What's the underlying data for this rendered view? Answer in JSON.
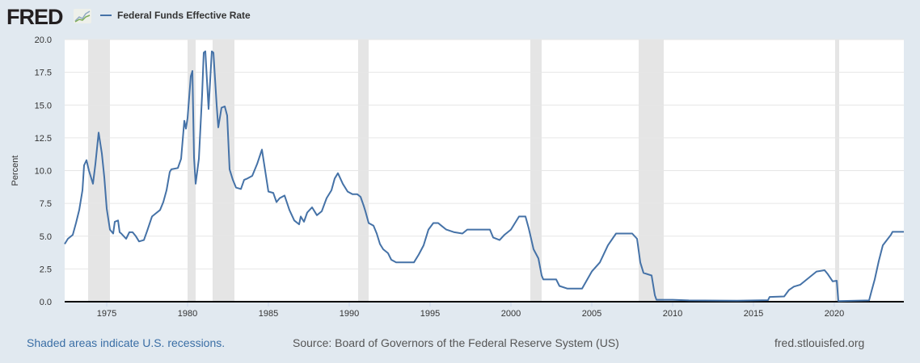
{
  "header": {
    "logo": "FRED",
    "legend_label": "Federal Funds Effective Rate"
  },
  "footer": {
    "recession_note": "Shaded areas indicate U.S. recessions.",
    "source": "Source: Board of Governors of the Federal Reserve System (US)",
    "site": "fred.stlouisfed.org"
  },
  "chart_data": {
    "type": "line",
    "title": "",
    "xlabel": "",
    "ylabel": "Percent",
    "xlim": [
      1972.4,
      2024.3
    ],
    "ylim": [
      0,
      20
    ],
    "grid": true,
    "legend": "top-left",
    "yticks": [
      "0.0",
      "2.5",
      "5.0",
      "7.5",
      "10.0",
      "12.5",
      "15.0",
      "17.5",
      "20.0"
    ],
    "xticks": [
      "1975",
      "1980",
      "1985",
      "1990",
      "1995",
      "2000",
      "2005",
      "2010",
      "2015",
      "2020"
    ],
    "colors": {
      "line": "#4572a7",
      "recession": "#e5e5e5",
      "background": "#e1e9f0"
    },
    "recessions": [
      [
        1973.85,
        1975.2
      ],
      [
        1980.0,
        1980.5
      ],
      [
        1981.55,
        1982.9
      ],
      [
        1990.55,
        1991.2
      ],
      [
        2001.2,
        2001.9
      ],
      [
        2007.9,
        2009.45
      ],
      [
        2020.05,
        2020.3
      ]
    ],
    "series": [
      {
        "name": "Federal Funds Effective Rate",
        "points": [
          [
            1972.4,
            4.4
          ],
          [
            1972.6,
            4.8
          ],
          [
            1972.9,
            5.1
          ],
          [
            1973.1,
            6.0
          ],
          [
            1973.3,
            7.0
          ],
          [
            1973.5,
            8.5
          ],
          [
            1973.6,
            10.4
          ],
          [
            1973.75,
            10.8
          ],
          [
            1973.9,
            10.0
          ],
          [
            1974.0,
            9.6
          ],
          [
            1974.15,
            9.0
          ],
          [
            1974.3,
            10.5
          ],
          [
            1974.5,
            12.9
          ],
          [
            1974.7,
            11.3
          ],
          [
            1974.85,
            9.5
          ],
          [
            1975.0,
            7.1
          ],
          [
            1975.2,
            5.5
          ],
          [
            1975.4,
            5.2
          ],
          [
            1975.5,
            6.1
          ],
          [
            1975.7,
            6.2
          ],
          [
            1975.8,
            5.3
          ],
          [
            1975.9,
            5.2
          ],
          [
            1976.2,
            4.8
          ],
          [
            1976.4,
            5.3
          ],
          [
            1976.6,
            5.3
          ],
          [
            1976.8,
            5.0
          ],
          [
            1977.0,
            4.6
          ],
          [
            1977.3,
            4.7
          ],
          [
            1977.5,
            5.4
          ],
          [
            1977.8,
            6.5
          ],
          [
            1978.0,
            6.7
          ],
          [
            1978.3,
            7.0
          ],
          [
            1978.5,
            7.6
          ],
          [
            1978.7,
            8.5
          ],
          [
            1978.9,
            9.9
          ],
          [
            1979.0,
            10.1
          ],
          [
            1979.4,
            10.2
          ],
          [
            1979.6,
            10.9
          ],
          [
            1979.8,
            13.8
          ],
          [
            1979.9,
            13.2
          ],
          [
            1980.0,
            14.0
          ],
          [
            1980.2,
            17.2
          ],
          [
            1980.3,
            17.6
          ],
          [
            1980.4,
            11.0
          ],
          [
            1980.5,
            9.0
          ],
          [
            1980.7,
            10.9
          ],
          [
            1980.9,
            15.8
          ],
          [
            1981.0,
            19.0
          ],
          [
            1981.1,
            19.1
          ],
          [
            1981.3,
            14.7
          ],
          [
            1981.5,
            19.1
          ],
          [
            1981.6,
            19.0
          ],
          [
            1981.8,
            15.0
          ],
          [
            1981.9,
            13.3
          ],
          [
            1982.1,
            14.8
          ],
          [
            1982.3,
            14.9
          ],
          [
            1982.45,
            14.2
          ],
          [
            1982.6,
            10.1
          ],
          [
            1982.8,
            9.3
          ],
          [
            1983.0,
            8.7
          ],
          [
            1983.3,
            8.6
          ],
          [
            1983.5,
            9.3
          ],
          [
            1983.7,
            9.4
          ],
          [
            1984.0,
            9.6
          ],
          [
            1984.3,
            10.5
          ],
          [
            1984.6,
            11.6
          ],
          [
            1984.8,
            10.0
          ],
          [
            1985.0,
            8.4
          ],
          [
            1985.3,
            8.3
          ],
          [
            1985.5,
            7.6
          ],
          [
            1985.7,
            7.9
          ],
          [
            1986.0,
            8.1
          ],
          [
            1986.3,
            7.0
          ],
          [
            1986.6,
            6.2
          ],
          [
            1986.9,
            5.9
          ],
          [
            1987.0,
            6.5
          ],
          [
            1987.2,
            6.1
          ],
          [
            1987.4,
            6.8
          ],
          [
            1987.7,
            7.2
          ],
          [
            1988.0,
            6.6
          ],
          [
            1988.3,
            6.9
          ],
          [
            1988.6,
            7.9
          ],
          [
            1988.9,
            8.5
          ],
          [
            1989.1,
            9.4
          ],
          [
            1989.3,
            9.8
          ],
          [
            1989.6,
            9.0
          ],
          [
            1989.9,
            8.4
          ],
          [
            1990.2,
            8.2
          ],
          [
            1990.5,
            8.2
          ],
          [
            1990.7,
            8.0
          ],
          [
            1990.9,
            7.3
          ],
          [
            1991.0,
            6.9
          ],
          [
            1991.2,
            6.0
          ],
          [
            1991.5,
            5.8
          ],
          [
            1991.7,
            5.2
          ],
          [
            1991.9,
            4.4
          ],
          [
            1992.1,
            4.0
          ],
          [
            1992.4,
            3.7
          ],
          [
            1992.6,
            3.2
          ],
          [
            1992.9,
            3.0
          ],
          [
            1993.5,
            3.0
          ],
          [
            1994.0,
            3.0
          ],
          [
            1994.3,
            3.6
          ],
          [
            1994.6,
            4.3
          ],
          [
            1994.9,
            5.5
          ],
          [
            1995.2,
            6.0
          ],
          [
            1995.5,
            6.0
          ],
          [
            1995.7,
            5.8
          ],
          [
            1996.0,
            5.5
          ],
          [
            1996.5,
            5.3
          ],
          [
            1997.0,
            5.2
          ],
          [
            1997.3,
            5.5
          ],
          [
            1998.0,
            5.5
          ],
          [
            1998.7,
            5.5
          ],
          [
            1998.9,
            4.9
          ],
          [
            1999.3,
            4.7
          ],
          [
            1999.6,
            5.1
          ],
          [
            2000.0,
            5.5
          ],
          [
            2000.5,
            6.5
          ],
          [
            2000.9,
            6.5
          ],
          [
            2001.1,
            5.6
          ],
          [
            2001.4,
            4.0
          ],
          [
            2001.7,
            3.3
          ],
          [
            2001.9,
            2.0
          ],
          [
            2002.0,
            1.7
          ],
          [
            2002.8,
            1.7
          ],
          [
            2003.0,
            1.2
          ],
          [
            2003.5,
            1.0
          ],
          [
            2004.4,
            1.0
          ],
          [
            2005.0,
            2.3
          ],
          [
            2005.5,
            3.0
          ],
          [
            2006.0,
            4.3
          ],
          [
            2006.5,
            5.2
          ],
          [
            2007.5,
            5.2
          ],
          [
            2007.8,
            4.8
          ],
          [
            2008.0,
            3.0
          ],
          [
            2008.2,
            2.2
          ],
          [
            2008.7,
            2.0
          ],
          [
            2008.9,
            0.5
          ],
          [
            2009.0,
            0.15
          ],
          [
            2010.0,
            0.15
          ],
          [
            2011.0,
            0.1
          ],
          [
            2014.0,
            0.08
          ],
          [
            2015.9,
            0.12
          ],
          [
            2016.0,
            0.36
          ],
          [
            2016.9,
            0.4
          ],
          [
            2017.2,
            0.9
          ],
          [
            2017.5,
            1.15
          ],
          [
            2017.9,
            1.3
          ],
          [
            2018.3,
            1.7
          ],
          [
            2018.9,
            2.3
          ],
          [
            2019.4,
            2.4
          ],
          [
            2019.6,
            2.1
          ],
          [
            2019.9,
            1.55
          ],
          [
            2020.15,
            1.6
          ],
          [
            2020.25,
            0.05
          ],
          [
            2022.15,
            0.1
          ],
          [
            2022.3,
            0.8
          ],
          [
            2022.5,
            1.7
          ],
          [
            2022.75,
            3.1
          ],
          [
            2023.0,
            4.3
          ],
          [
            2023.5,
            5.1
          ],
          [
            2023.6,
            5.33
          ],
          [
            2024.3,
            5.33
          ]
        ]
      }
    ]
  }
}
